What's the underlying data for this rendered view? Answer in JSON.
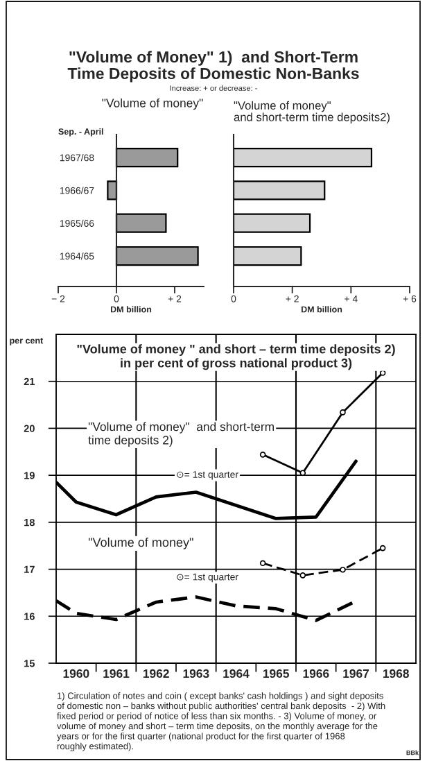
{
  "chart_data": [
    {
      "type": "bar",
      "orientation": "horizontal",
      "title": "\"Volume of Money\" 1)  and Short-Term\nTime Deposits of Domestic Non-Banks",
      "subtitle": "Increase: + or decrease: -",
      "annotations": [
        "\"Volume of money\""
      ],
      "ylabel": "Sep. - April",
      "xlabel": "DM billion",
      "categories": [
        "1967/68",
        "1966/67",
        "1965/66",
        "1964/65"
      ],
      "series": [
        {
          "color": "#9a9a9a",
          "values": [
            2.1,
            -0.3,
            1.7,
            2.8
          ]
        }
      ],
      "xlim": [
        -2,
        3
      ],
      "xticks": [
        {
          "value": -2,
          "label": "− 2"
        },
        0,
        {
          "value": 2,
          "label": "+ 2"
        }
      ]
    },
    {
      "type": "bar",
      "orientation": "horizontal",
      "title": "\"Volume of money\"\nand short-term time deposits2)",
      "xlabel": "DM billion",
      "categories": [
        "1967/68",
        "1966/67",
        "1965/66",
        "1964/65"
      ],
      "series": [
        {
          "color": "#d4d4d4",
          "values": [
            4.7,
            3.1,
            2.6,
            2.3
          ]
        }
      ],
      "xlim": [
        0,
        6
      ],
      "xticks": [
        0,
        {
          "value": 2,
          "label": "+ 2"
        },
        {
          "value": 4,
          "label": "+ 4"
        },
        {
          "value": 6,
          "label": "+ 6"
        }
      ],
      "tick_labels": "x"
    },
    {
      "type": "line",
      "title": "\"Volume of money \" and short – term time deposits 2)\nin per cent of gross national product 3)",
      "ylabel": "per cent",
      "series": [
        {
          "color": "#000000",
          "line_style": "solid",
          "x": [
            1959.5,
            1960,
            1961,
            1962,
            1963,
            1964,
            1965,
            1966,
            1967
          ],
          "values": [
            18.85,
            18.43,
            18.16,
            18.54,
            18.64,
            18.36,
            18.08,
            18.11,
            19.3
          ]
        },
        {
          "color": "#000000",
          "line_style": "solid",
          "marker": "circle",
          "x": [
            1964.67,
            1965.67,
            1966.67,
            1967.67
          ],
          "values": [
            19.44,
            19.05,
            20.34,
            21.18
          ]
        },
        {
          "color": "#000000",
          "line_style": "dashed",
          "x": [
            1959.5,
            1960,
            1961,
            1962,
            1963,
            1964,
            1965,
            1966,
            1967
          ],
          "values": [
            16.33,
            16.06,
            15.93,
            16.3,
            16.41,
            16.22,
            16.16,
            15.91,
            16.32
          ]
        },
        {
          "color": "#000000",
          "line_style": "dashed",
          "marker": "circle",
          "x": [
            1964.67,
            1965.67,
            1966.67,
            1967.67
          ],
          "values": [
            17.13,
            16.87,
            16.99,
            17.45
          ]
        }
      ],
      "xlim": [
        1959.5,
        1968.5
      ],
      "xticks": [
        1960,
        1961,
        1962,
        1963,
        1964,
        1965,
        1966,
        1967,
        1968,
        {
          "value": 1960.5,
          "label": null
        },
        {
          "value": 1961.5,
          "label": null
        },
        {
          "value": 1962.5,
          "label": null
        },
        {
          "value": 1963.5,
          "label": null
        },
        {
          "value": 1964.5,
          "label": null
        },
        {
          "value": 1965.5,
          "label": null
        },
        {
          "value": 1966.5,
          "label": null
        },
        {
          "value": 1967.5,
          "label": null
        }
      ],
      "ylim": [
        15,
        22
      ],
      "yticks": [
        15,
        16,
        17,
        18,
        19,
        20,
        21
      ],
      "grid": "y",
      "legend": false,
      "ref_lines": [
        {
          "axis": "x",
          "value": 1961.5,
          "color": "#000000"
        },
        {
          "axis": "x",
          "value": 1963.5,
          "color": "#000000"
        },
        {
          "axis": "x",
          "value": 1965.5,
          "color": "#000000"
        },
        {
          "axis": "x",
          "value": 1967.5,
          "color": "#000000"
        }
      ],
      "annotations": [
        "\"Volume of money\"  and short-term\ntime deposits 2)",
        "⊙= 1st quarter",
        "\"Volume of money\"",
        "⊙= 1st quarter",
        "1) Circulation of notes and coin ( except banks' cash holdings ) and sight deposits\nof domestic non – banks without public authorities' central bank deposits  - 2) With\nfixed period or period of notice of less than six months. - 3) Volume of money, or\nvolume of money and short – term time deposits, on the monthly average for the\nyears or for the first quarter (national product for the first quarter of 1968\nroughly estimated).",
        "BBk"
      ]
    }
  ]
}
